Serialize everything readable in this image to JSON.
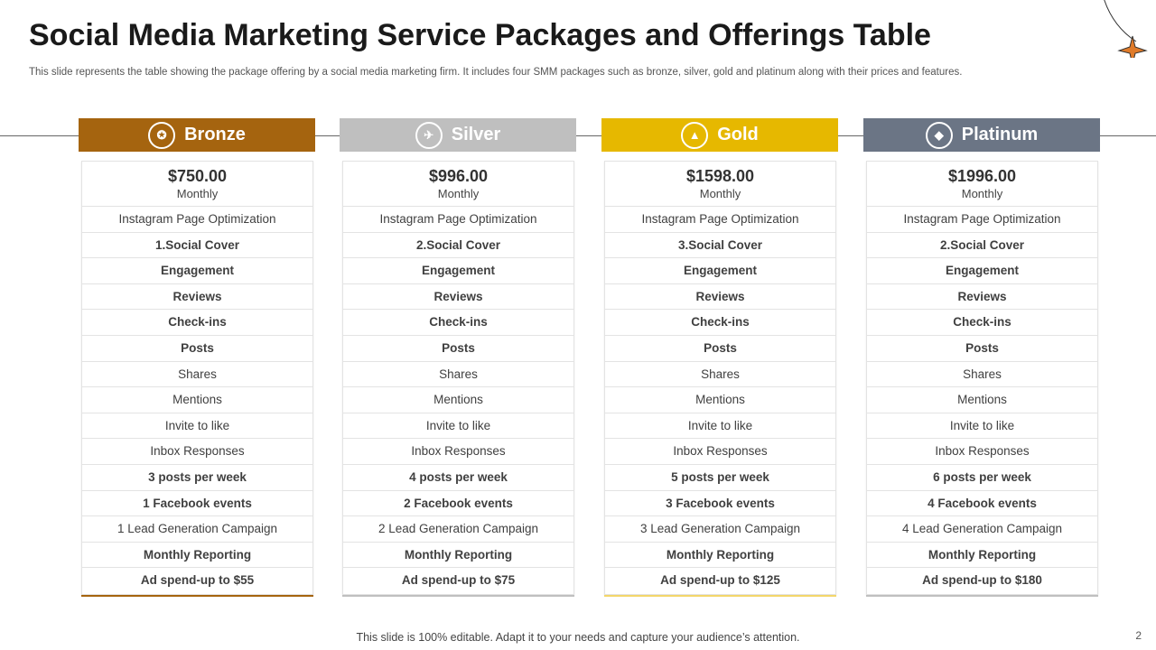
{
  "title": "Social Media Marketing Service Packages and Offerings Table",
  "subtitle": "This slide represents the table showing the package offering by a social media marketing firm. It includes four SMM  packages such as bronze, silver, gold and platinum along with their prices and features.",
  "footer": "This slide is 100% editable. Adapt it to your needs and capture your audience’s attention.",
  "page_number": "2",
  "colors": {
    "bronze": "#a5640f",
    "silver": "#bfbfbf",
    "gold": "#e6b800",
    "platinum": "#6b7585",
    "accent_star": "#e07b2a"
  },
  "packages": [
    {
      "name": "Bronze",
      "icon": "award-icon",
      "price": "$750.00",
      "period": "Monthly",
      "features": [
        "Instagram Page Optimization",
        "1.Social Cover",
        "Engagement",
        "Reviews",
        "Check-ins",
        "Posts",
        "Shares",
        "Mentions",
        "Invite to like",
        "Inbox Responses",
        "3 posts  per week",
        "1 Facebook events",
        "1 Lead Generation Campaign",
        "Monthly Reporting",
        "Ad spend-up  to $55"
      ]
    },
    {
      "name": "Silver",
      "icon": "plane-icon",
      "price": "$996.00",
      "period": "Monthly",
      "features": [
        "Instagram Page Optimization",
        "2.Social Cover",
        "Engagement",
        "Reviews",
        "Check-ins",
        "Posts",
        "Shares",
        "Mentions",
        "Invite to like",
        "Inbox Responses",
        "4 posts  per week",
        "2 Facebook events",
        "2 Lead Generation Campaign",
        "Monthly Reporting",
        "Ad spend-up  to $75"
      ]
    },
    {
      "name": "Gold",
      "icon": "gold-bars-icon",
      "price": "$1598.00",
      "period": "Monthly",
      "features": [
        "Instagram Page Optimization",
        "3.Social Cover",
        "Engagement",
        "Reviews",
        "Check-ins",
        "Posts",
        "Shares",
        "Mentions",
        "Invite to like",
        "Inbox Responses",
        "5 posts  per week",
        "3 Facebook events",
        "3 Lead Generation Campaign",
        "Monthly Reporting",
        "Ad spend-up  to $125"
      ]
    },
    {
      "name": "Platinum",
      "icon": "diamond-icon",
      "price": "$1996.00",
      "period": "Monthly",
      "features": [
        "Instagram Page Optimization",
        "2.Social Cover",
        "Engagement",
        "Reviews",
        "Check-ins",
        "Posts",
        "Shares",
        "Mentions",
        "Invite to like",
        "Inbox Responses",
        "6 posts  per week",
        "4 Facebook events",
        "4 Lead Generation Campaign",
        "Monthly Reporting",
        "Ad spend-up  to $180"
      ]
    }
  ]
}
